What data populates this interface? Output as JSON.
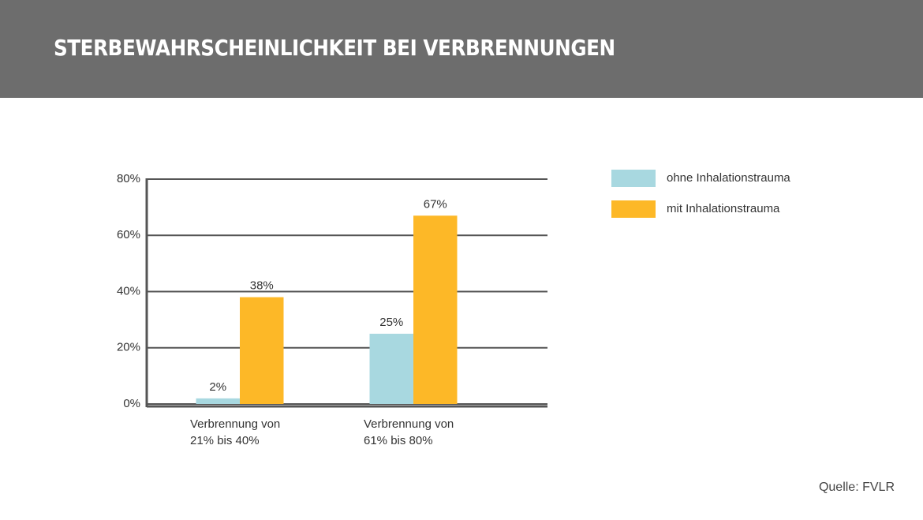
{
  "chart_data": {
    "type": "bar",
    "title": "STERBEWAHRSCHEINLICHKEIT BEI VERBRENNUNGEN",
    "categories": [
      "Verbrennung von 21% bis 40%",
      "Verbrennung von 61% bis 80%"
    ],
    "series": [
      {
        "name": "ohne Inhalationstrauma",
        "color": "#a8d8e0",
        "values": [
          2,
          25
        ],
        "value_labels": [
          "2%",
          "25%"
        ]
      },
      {
        "name": "mit Inhalationstrauma",
        "color": "#fdb827",
        "values": [
          38,
          67
        ],
        "value_labels": [
          "38%",
          "67%"
        ]
      }
    ],
    "ylim": [
      0,
      80
    ],
    "yticks": [
      {
        "value": 0,
        "label": "0%"
      },
      {
        "value": 20,
        "label": "20%"
      },
      {
        "value": 40,
        "label": "40%"
      },
      {
        "value": 60,
        "label": "60%"
      },
      {
        "value": 80,
        "label": "80%"
      }
    ],
    "grid": true,
    "legend": "right",
    "source": "Quelle: FVLR"
  }
}
